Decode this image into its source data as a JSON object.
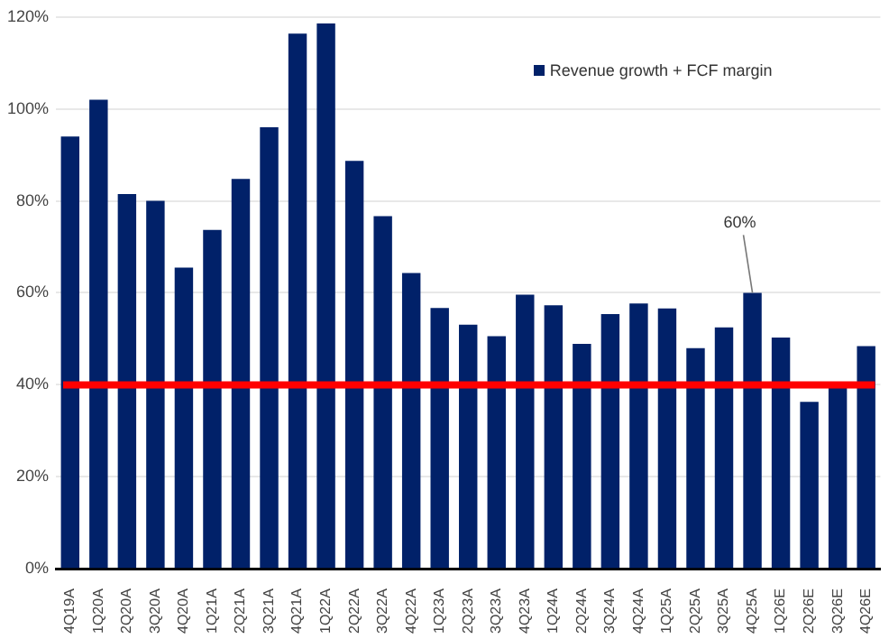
{
  "chart_data": {
    "type": "bar",
    "categories": [
      "4Q19A",
      "1Q20A",
      "2Q20A",
      "3Q20A",
      "4Q20A",
      "1Q21A",
      "2Q21A",
      "3Q21A",
      "4Q21A",
      "1Q22A",
      "2Q22A",
      "3Q22A",
      "4Q22A",
      "1Q23A",
      "2Q23A",
      "3Q23A",
      "4Q23A",
      "1Q24A",
      "2Q24A",
      "3Q24A",
      "4Q24A",
      "1Q25A",
      "2Q25A",
      "3Q25A",
      "4Q25A",
      "1Q26E",
      "2Q26E",
      "3Q26E",
      "4Q26E"
    ],
    "series": [
      {
        "name": "Revenue growth + FCF margin",
        "color": "#012169",
        "values": [
          94,
          102,
          81.5,
          80,
          65.5,
          73.7,
          84.8,
          96,
          116.4,
          118.6,
          88.7,
          76.7,
          64.3,
          56.7,
          53.1,
          50.6,
          59.6,
          57.3,
          48.9,
          55.4,
          57.7,
          56.6,
          48,
          52.5,
          60,
          50.3,
          36.3,
          39.8,
          48.4
        ]
      }
    ],
    "ylim": [
      0,
      120
    ],
    "yticks": [
      {
        "value": 0,
        "label": "0%"
      },
      {
        "value": 20,
        "label": "20%"
      },
      {
        "value": 40,
        "label": "40%"
      },
      {
        "value": 60,
        "label": "60%"
      },
      {
        "value": 80,
        "label": "80%"
      },
      {
        "value": 100,
        "label": "100%"
      },
      {
        "value": 120,
        "label": "120%"
      }
    ],
    "ref_lines": [
      {
        "axis": "y",
        "value": 40,
        "color": "#ff0000"
      }
    ],
    "annotations": [
      {
        "text": "60%",
        "x": "4Q25A",
        "y": 60
      }
    ],
    "grid": "y",
    "legend": "top right"
  }
}
